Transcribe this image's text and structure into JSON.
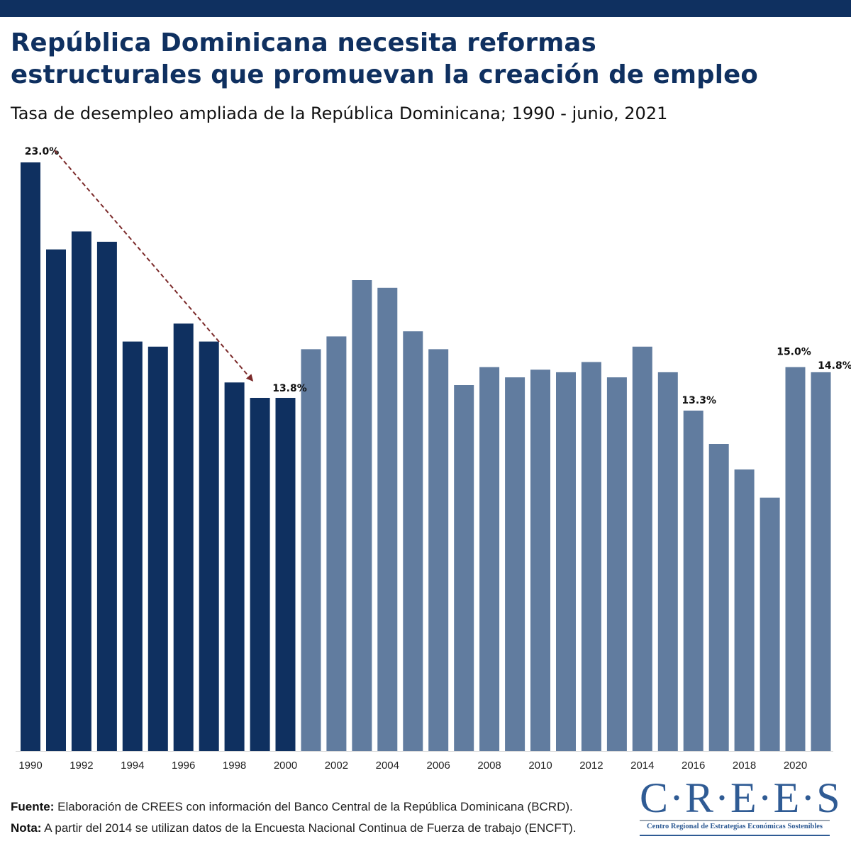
{
  "header": {
    "title_line1": "República Dominicana necesita reformas",
    "title_line2": "estructurales que promuevan la creación de empleo",
    "subtitle": "Tasa de desempleo ampliada de la República Dominicana; 1990 - junio, 2021"
  },
  "colors": {
    "topbar": "#0f3060",
    "title": "#0f3060",
    "bar_dark": "#0f3060",
    "bar_light": "#617c9f",
    "arrow": "#7b2a2a"
  },
  "chart_data": {
    "type": "bar",
    "title": "Tasa de desempleo ampliada de la República Dominicana; 1990 - junio, 2021",
    "xlabel": "",
    "ylabel": "",
    "ylim": [
      0,
      23
    ],
    "grid": false,
    "categories": [
      "1990",
      "1991",
      "1992",
      "1993",
      "1994",
      "1995",
      "1996",
      "1997",
      "1998",
      "1999",
      "2000",
      "2001",
      "2002",
      "2003",
      "2004",
      "2005",
      "2006",
      "2007",
      "2008",
      "2009",
      "2010",
      "2011",
      "2012",
      "2013",
      "2014",
      "2015",
      "2016",
      "2017",
      "2018",
      "2019",
      "2020",
      "2021"
    ],
    "values": [
      23.0,
      19.6,
      20.3,
      19.9,
      16.0,
      15.8,
      16.7,
      16.0,
      14.4,
      13.8,
      13.8,
      15.7,
      16.2,
      18.4,
      18.1,
      16.4,
      15.7,
      14.3,
      15.0,
      14.6,
      14.9,
      14.8,
      15.2,
      14.6,
      15.8,
      14.8,
      13.3,
      12.0,
      11.0,
      9.9,
      15.0,
      14.8
    ],
    "highlight_period": {
      "from": "1990",
      "to": "2000",
      "color": "#0f3060"
    },
    "other_color": "#617c9f",
    "x_tick_labels": [
      "1990",
      "1992",
      "1994",
      "1996",
      "1998",
      "2000",
      "2002",
      "2004",
      "2006",
      "2008",
      "2010",
      "2012",
      "2014",
      "2016",
      "2018",
      "2020"
    ],
    "data_labels": [
      {
        "category": "1990",
        "text": "23.0%"
      },
      {
        "category": "2000",
        "text": "13.8%"
      },
      {
        "category": "2016",
        "text": "13.3%"
      },
      {
        "category": "2020",
        "text": "15.0%"
      },
      {
        "category": "2021",
        "text": "14.8%"
      }
    ],
    "annotations": [
      {
        "type": "dashed-arrow",
        "from": "1990",
        "to": "1999",
        "note": "decline from 23.0% to 13.8%"
      }
    ]
  },
  "footer": {
    "source_label": "Fuente:",
    "source_text": " Elaboración de CREES con información del Banco Central de la República Dominicana (BCRD).",
    "note_label": "Nota:",
    "note_text": " A partir del 2014 se utilizan datos de la Encuesta Nacional Continua de Fuerza de trabajo (ENCFT)."
  },
  "logo": {
    "name": "C·R·E·E·S",
    "subtitle": "Centro Regional de Estrategias Económicas Sostenibles"
  }
}
